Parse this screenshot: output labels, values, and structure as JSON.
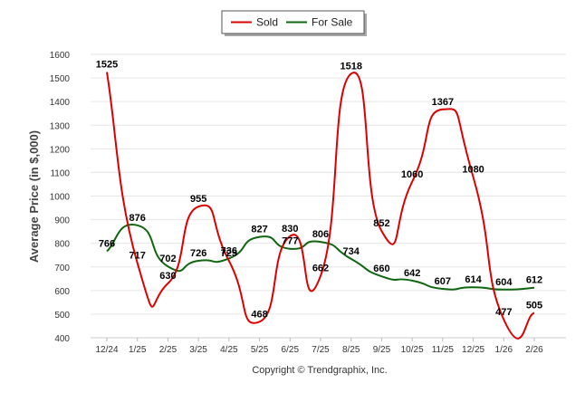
{
  "chart_data": {
    "type": "line",
    "title": "",
    "xlabel": "",
    "ylabel": "Average Price (in $,000)",
    "categories": [
      "12/24",
      "1/25",
      "2/25",
      "3/25",
      "4/25",
      "5/25",
      "6/25",
      "7/25",
      "8/25",
      "9/25",
      "10/25",
      "11/25",
      "12/25",
      "1/26",
      "2/26"
    ],
    "ylim": [
      400,
      1600
    ],
    "yticks": [
      "400",
      "500",
      "600",
      "700",
      "800",
      "900",
      "1000",
      "1100",
      "1200",
      "1300",
      "1400",
      "1500",
      "1600"
    ],
    "grid": true,
    "legend_position": "top-center",
    "series": [
      {
        "name": "Sold",
        "color": "#dd0000",
        "values": [
          1525,
          717,
          630,
          955,
          725,
          468,
          830,
          662,
          1518,
          852,
          1060,
          1367,
          1080,
          477,
          505
        ],
        "labels": [
          "1525",
          "717",
          "630",
          "955",
          "725",
          "468",
          "830",
          "662",
          "1518",
          "852",
          "1060",
          "1367",
          "1080",
          "477",
          "505"
        ]
      },
      {
        "name": "For Sale",
        "color": "#116611",
        "values": [
          766,
          876,
          702,
          726,
          736,
          827,
          777,
          806,
          734,
          660,
          642,
          607,
          614,
          604,
          612
        ],
        "labels": [
          "766",
          "876",
          "702",
          "726",
          "736",
          "827",
          "777",
          "806",
          "734",
          "660",
          "642",
          "607",
          "614",
          "604",
          "612"
        ]
      }
    ]
  },
  "footer": {
    "copyright": "Copyright © Trendgraphix, Inc."
  }
}
